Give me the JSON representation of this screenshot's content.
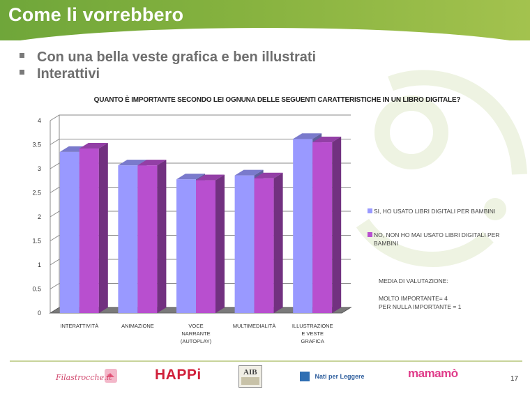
{
  "header": {
    "title": "Come li vorrebbero"
  },
  "bullets": [
    "Con una bella veste grafica e ben illustrati",
    "Interattivi"
  ],
  "chart_data": {
    "type": "bar",
    "title": "QUANTO È IMPORTANTE SECONDO LEI OGNUNA DELLE SEGUENTI CARATTERISTICHE IN UN LIBRO DIGITALE?",
    "categories": [
      "INTERATTIVITÀ",
      "ANIMAZIONE",
      "VOCE NARRANTE (AUTOPLAY)",
      "MULTIMEDIALITÀ",
      "ILLUSTRAZIONE E VESTE GRAFICA"
    ],
    "category_lines": [
      [
        "INTERATTIVITÀ"
      ],
      [
        "ANIMAZIONE"
      ],
      [
        "VOCE",
        "NARRANTE",
        "(AUTOPLAY)"
      ],
      [
        "MULTIMEDIALITÀ"
      ],
      [
        "ILLUSTRAZIONE",
        "E VESTE",
        "GRAFICA"
      ]
    ],
    "series": [
      {
        "name": "SI, HO USATO LIBRI DIGITALI PER BAMBINI",
        "values": [
          3.35,
          3.07,
          2.78,
          2.86,
          3.62
        ],
        "color": "#9999ff"
      },
      {
        "name": "NO, NON HO MAI USATO LIBRI DIGITALI PER BAMBINI",
        "values": [
          3.42,
          3.07,
          2.76,
          2.8,
          3.55
        ],
        "color": "#b84fcf"
      }
    ],
    "yticks": [
      "0",
      "0.5",
      "1",
      "1.5",
      "2",
      "2.5",
      "3",
      "3.5",
      "4"
    ],
    "ylim": [
      0,
      4
    ],
    "grid": true,
    "legend_position": "right"
  },
  "legend": {
    "series1_lines": [
      "SI, HO USATO LIBRI DIGITALI PER BAMBINI"
    ],
    "series2_lines": [
      "NO, NON HO MAI USATO LIBRI DIGITALI PER",
      "BAMBINI"
    ]
  },
  "notes": [
    "MEDIA DI VALUTAZIONE:",
    "MOLTO IMPORTANTE= 4",
    "PER NULLA IMPORTANTE = 1"
  ],
  "footer": {
    "logos": [
      "Filastrocche.it",
      "HAPPi",
      "AIB",
      "Nati per Leggere",
      "mamamò"
    ],
    "page_number": "17"
  },
  "colors": {
    "header_green": "#86b23f",
    "series1": "#9999ff",
    "series2": "#b84fcf",
    "bullet_text": "#6e6e6e"
  }
}
